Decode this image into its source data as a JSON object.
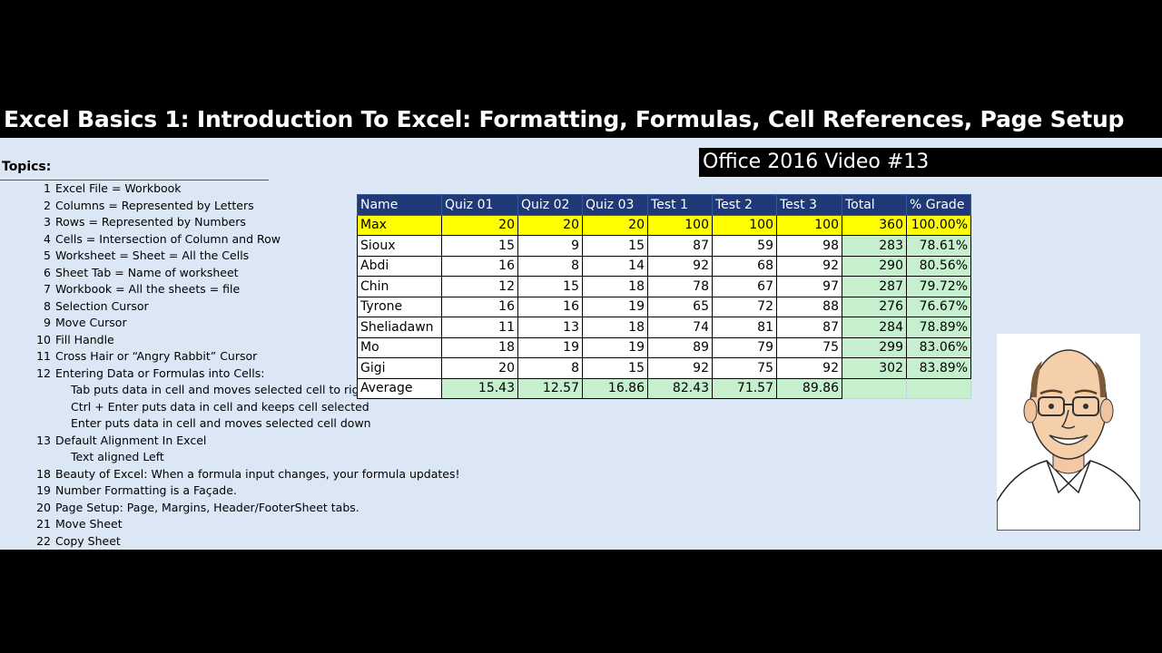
{
  "title": "Excel Basics 1: Introduction To Excel: Formatting, Formulas, Cell References, Page Setup",
  "badge": "Office 2016 Video #13",
  "topics": {
    "heading": "Topics:",
    "items": [
      {
        "num": "1",
        "text": "Excel File = Workbook"
      },
      {
        "num": "2",
        "text": "Columns = Represented by Letters"
      },
      {
        "num": "3",
        "text": "Rows = Represented by Numbers"
      },
      {
        "num": "4",
        "text": "Cells = Intersection of Column and Row"
      },
      {
        "num": "5",
        "text": "Worksheet = Sheet = All the Cells"
      },
      {
        "num": "6",
        "text": "Sheet Tab = Name of worksheet"
      },
      {
        "num": "7",
        "text": "Workbook = All the sheets = file"
      },
      {
        "num": "8",
        "text": "Selection Cursor"
      },
      {
        "num": "9",
        "text": "Move Cursor"
      },
      {
        "num": "10",
        "text": "Fill Handle"
      },
      {
        "num": "11",
        "text": "Cross Hair or “Angry Rabbit” Cursor"
      },
      {
        "num": "12",
        "text": "Entering Data or Formulas into Cells:"
      },
      {
        "num": "",
        "text": "Tab puts data in cell and moves selected cell to right"
      },
      {
        "num": "",
        "text": "Ctrl + Enter puts data in cell and keeps cell selected"
      },
      {
        "num": "",
        "text": "Enter puts data in cell and moves selected cell down"
      },
      {
        "num": "13",
        "text": "Default Alignment In Excel"
      },
      {
        "num": "",
        "text": "Text aligned Left"
      },
      {
        "num": "18",
        "text": "Beauty of Excel: When a formula input changes, your formula updates!"
      },
      {
        "num": "19",
        "text": "Number Formatting is a Façade."
      },
      {
        "num": "20",
        "text": "Page Setup: Page, Margins, Header/FooterSheet tabs."
      },
      {
        "num": "21",
        "text": "Move Sheet"
      },
      {
        "num": "22",
        "text": "Copy Sheet"
      }
    ]
  },
  "table": {
    "headers": [
      "Name",
      "Quiz 01",
      "Quiz 02",
      "Quiz 03",
      "Test 1",
      "Test 2",
      "Test 3",
      "Total",
      "% Grade"
    ],
    "max": [
      "Max",
      "20",
      "20",
      "20",
      "100",
      "100",
      "100",
      "360",
      "100.00%"
    ],
    "rows": [
      [
        "Sioux",
        "15",
        "9",
        "15",
        "87",
        "59",
        "98",
        "283",
        "78.61%"
      ],
      [
        "Abdi",
        "16",
        "8",
        "14",
        "92",
        "68",
        "92",
        "290",
        "80.56%"
      ],
      [
        "Chin",
        "12",
        "15",
        "18",
        "78",
        "67",
        "97",
        "287",
        "79.72%"
      ],
      [
        "Tyrone",
        "16",
        "16",
        "19",
        "65",
        "72",
        "88",
        "276",
        "76.67%"
      ],
      [
        "Sheliadawn",
        "11",
        "13",
        "18",
        "74",
        "81",
        "87",
        "284",
        "78.89%"
      ],
      [
        "Mo",
        "18",
        "19",
        "19",
        "89",
        "79",
        "75",
        "299",
        "83.06%"
      ],
      [
        "Gigi",
        "20",
        "8",
        "15",
        "92",
        "75",
        "92",
        "302",
        "83.89%"
      ]
    ],
    "average": [
      "Average",
      "15.43",
      "12.57",
      "16.86",
      "82.43",
      "71.57",
      "89.86"
    ]
  },
  "colors": {
    "header_bg": "#1f3a76",
    "max_bg": "#ffff00",
    "calc_bg": "#c6efce",
    "slide_bg": "#dbe7f4"
  },
  "portrait_icon": "presenter-caricature"
}
